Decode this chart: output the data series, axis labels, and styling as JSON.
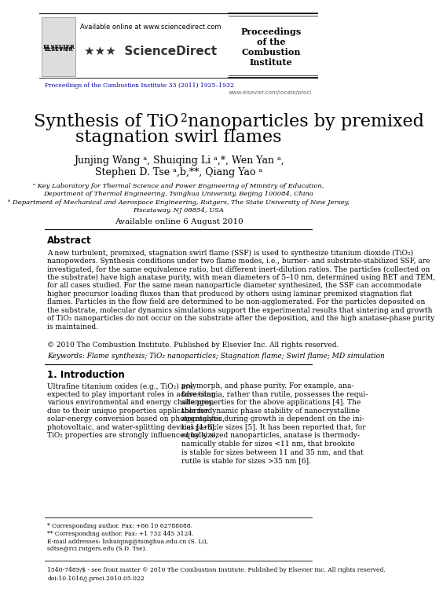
{
  "bg_color": "#ffffff",
  "header_url": "Available online at www.sciencedirect.com",
  "journal_line": "Proceedings of the Combustion Institute 33 (2011) 1925–1932",
  "journal_url": "www.elsevier.com/locate/proci",
  "proceedings_box": "Proceedings\nof the\nCombustion\nInstitute",
  "title_line1": "Synthesis of TiO",
  "title_sub": "2",
  "title_line1b": " nanoparticles by premixed",
  "title_line2": "stagnation swirl flames",
  "authors": "Junjing Wang ᵃ, Shuiqing Li ᵃ,*, Wen Yan ᵃ,",
  "authors2": "Stephen D. Tse ᵃ,b,**, Qiang Yao ᵃ",
  "affil_a": "ᵃ Key Laboratory for Thermal Science and Power Engineering of Ministry of Education,",
  "affil_a2": "Department of Thermal Engineering, Tsinghua University, Beijing 100084, China",
  "affil_b": "ᵇ Department of Mechanical and Aerospace Engineering, Rutgers, The State University of New Jersey,",
  "affil_b2": "Piscataway, NJ 08854, USA",
  "available": "Available online 6 August 2010",
  "abstract_title": "Abstract",
  "abstract_text": "A new turbulent, premixed, stagnation swirl flame (SSF) is used to synthesize titanium dioxide (TiO₂)\nnanopowders. Synthesis conditions under two flame modes, i.e., burner- and substrate-stabilized SSF, are\ninvestigated, for the same equivalence ratio, but different inert-dilution ratios. The particles (collected on\nthe substrate) have high anatase purity, with mean diameters of 5–10 nm, determined using BET and TEM,\nfor all cases studied. For the same mean nanoparticle diameter synthesized, the SSF can accommodate\nhigher precursor loading fluxes than that produced by others using laminar premixed stagnation flat\nflames. Particles in the flow field are determined to be non-agglomerated. For the particles deposited on\nthe substrate, molecular dynamics simulations support the experimental results that sintering and growth\nof TiO₂ nanoparticles do not occur on the substrate after the deposition, and the high anatase-phase purity\nis maintained.",
  "copyright": "© 2010 The Combustion Institute. Published by Elsevier Inc. All rights reserved.",
  "keywords": "Keywords: Flame synthesis; TiO₂ nanoparticles; Stagnation flame; Swirl flame; MD simulation",
  "intro_title": "1. Introduction",
  "intro_col1": "Ultrafine titanium oxides (e.g., TiO₂) are\nexpected to play important roles in addressing\nvarious environmental and energy challenges,\ndue to their unique properties applicable for\nsolar-energy conversion based on photocatalytic,\nphotovoltaic, and water-splitting devices [1–3].\nTiO₂ properties are strongly influenced by size,",
  "intro_col2": "polymorph, and phase purity. For example, ana-\ntase titania, rather than rutile, possesses the requi-\nsite properties for the above applications [4]. The\nthermodynamic phase stability of nanocrystalline\naggregates during growth is dependent on the ini-\ntial particle sizes [5]. It has been reported that, for\nequally sized nanoparticles, anatase is thermody-\nnamically stable for sizes <11 nm, that brookite\nis stable for sizes between 11 and 35 nm, and that\nrutile is stable for sizes >35 nm [6].",
  "footnote1": "* Corresponding author. Fax: +86 10 62788088.",
  "footnote2": "** Corresponding author. Fax: +1 732 445 3124.",
  "footnote3": "E-mail addresses: lishuiqing@tsinghua.edu.cn (S. Li),\nsdtse@rci.rutgers.edu (S.D. Tse).",
  "footer1": "1540-7489/$ - see front matter © 2010 The Combustion Institute. Published by Elsevier Inc. All rights reserved.",
  "footer2": "doi:10.1016/j.proci.2010.05.022"
}
